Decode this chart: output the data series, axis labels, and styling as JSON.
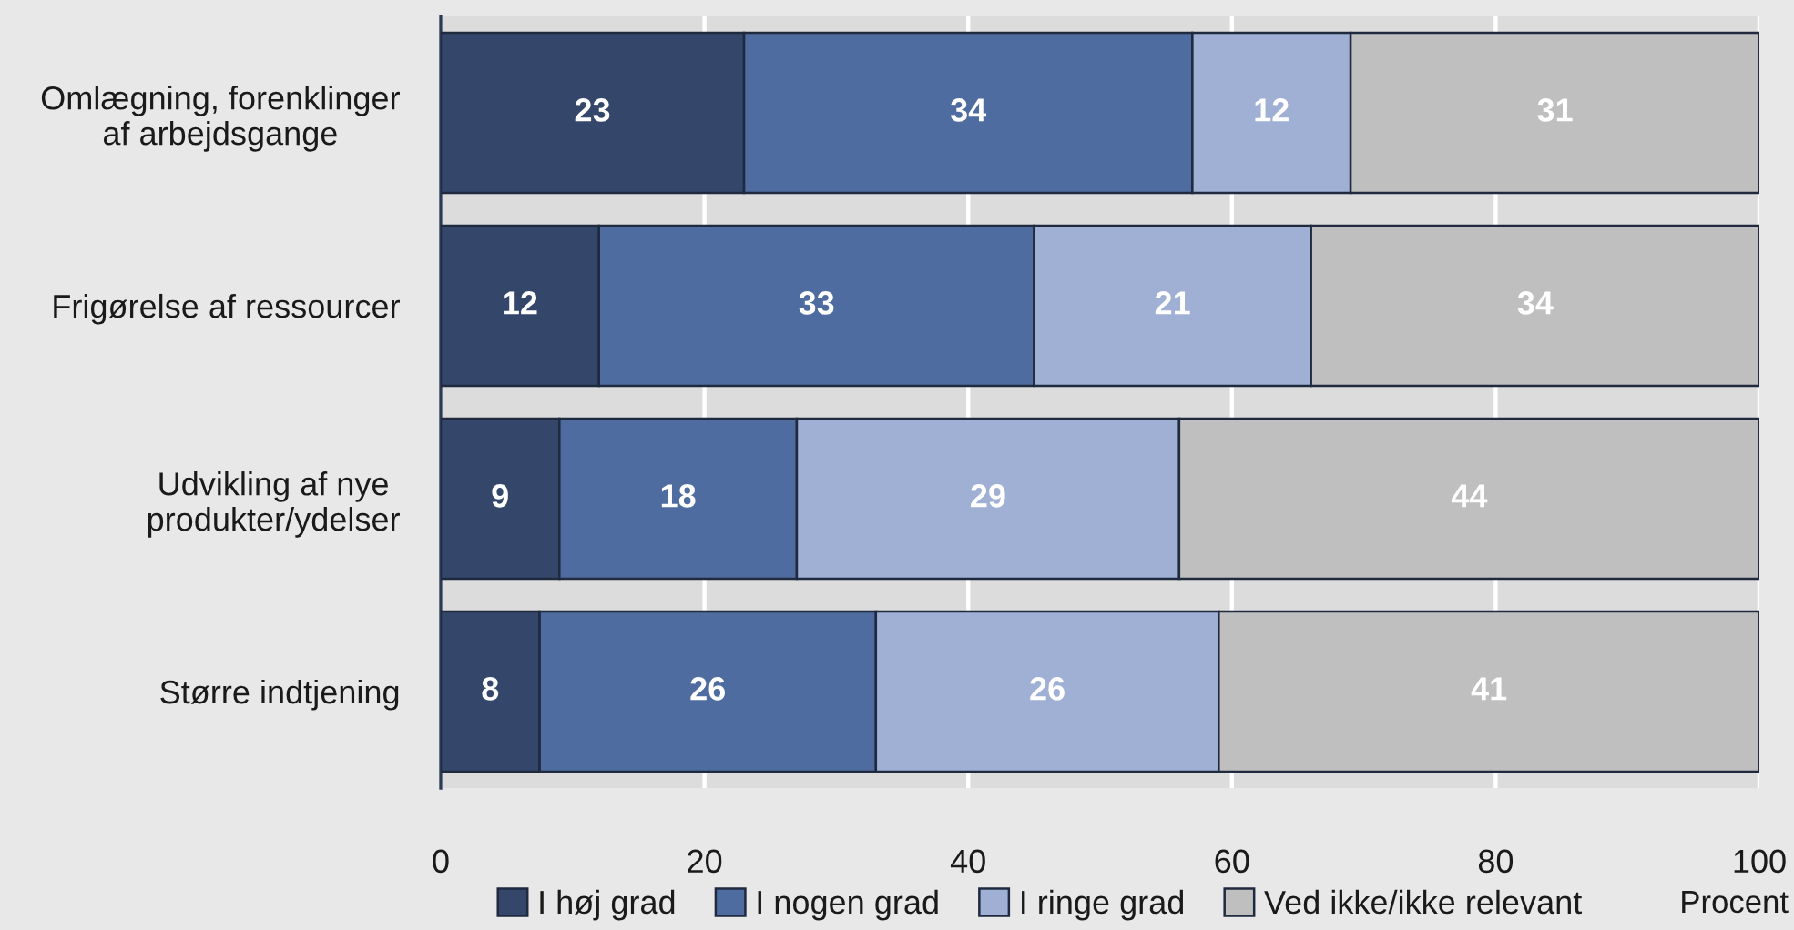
{
  "chart_data": {
    "type": "bar",
    "orientation": "horizontal",
    "stacked": true,
    "categories": [
      "Omlægning, forenklinger\naf arbejdsgange",
      "Frigørelse af ressourcer",
      "Udvikling af nye\nprodukter/ydelser",
      "Større indtjening"
    ],
    "series": [
      {
        "name": "I høj grad",
        "color": "#34476b",
        "values": [
          23,
          12,
          9,
          7.5
        ],
        "value_labels": [
          "23",
          "12",
          "9",
          "8"
        ]
      },
      {
        "name": "I nogen grad",
        "color": "#4f6ca1",
        "values": [
          34,
          33,
          18,
          25.5
        ],
        "value_labels": [
          "34",
          "33",
          "18",
          "26"
        ]
      },
      {
        "name": "I ringe grad",
        "color": "#9fb0d4",
        "values": [
          12,
          21,
          29,
          26
        ],
        "value_labels": [
          "12",
          "21",
          "29",
          "26"
        ]
      },
      {
        "name": "Ved ikke/ikke relevant",
        "color": "#bfbfbf",
        "values": [
          31,
          34,
          44,
          41
        ],
        "value_labels": [
          "31",
          "34",
          "44",
          "41"
        ]
      }
    ],
    "xlabel": "Procent",
    "xlim": [
      0,
      100
    ],
    "xticks": [
      0,
      20,
      40,
      60,
      80,
      100
    ],
    "grid": "x",
    "legend": "bottom"
  }
}
